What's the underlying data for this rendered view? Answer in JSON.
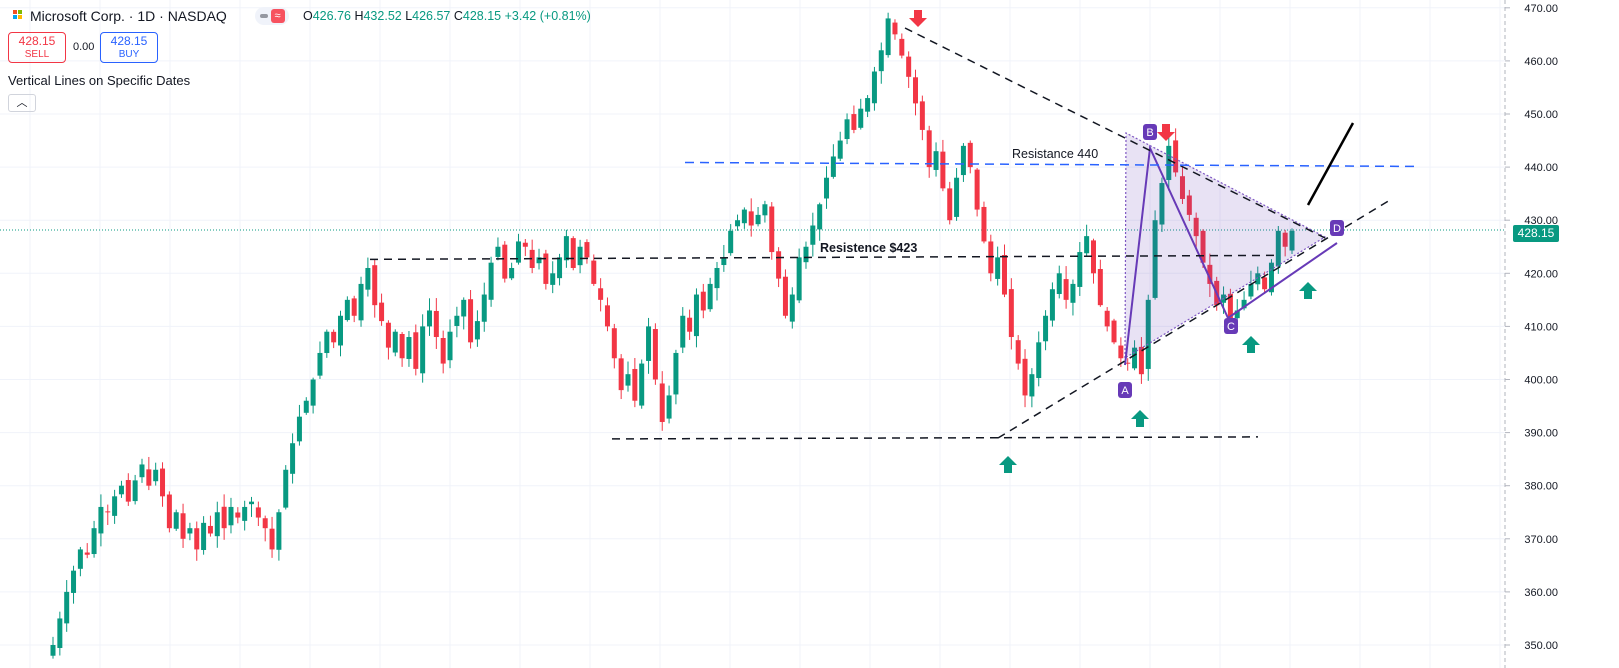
{
  "header": {
    "symbol_line": "Microsoft Corp. · 1D · NASDAQ",
    "ohlc": {
      "o_label": "O",
      "o": "426.76",
      "h_label": "H",
      "h": "432.52",
      "l_label": "L",
      "l": "426.57",
      "c_label": "C",
      "c": "428.15",
      "change": "+3.42 (+0.81%)"
    },
    "sell_price": "428.15",
    "sell_label": "SELL",
    "spread": "0.00",
    "buy_price": "428.15",
    "buy_label": "BUY",
    "indicator_title": "Vertical Lines on Specific Dates",
    "collapse_icon": "chevron-up-icon"
  },
  "colors": {
    "up": "#089981",
    "down": "#f23645",
    "blue": "#2962ff",
    "purple": "#673ab7",
    "grid": "#f0f3fa"
  },
  "last_price_tag": "428.15",
  "chart_data": {
    "type": "candlestick",
    "y_axis_labels": [
      "470.00",
      "460.00",
      "450.00",
      "440.00",
      "430.00",
      "420.00",
      "410.00",
      "400.00",
      "390.00",
      "380.00",
      "370.00",
      "360.00",
      "350.00"
    ],
    "ylim": [
      349,
      471
    ],
    "last_price": 428.15,
    "closes": [
      350,
      355,
      360,
      364,
      368,
      367,
      372,
      376,
      375,
      378,
      380,
      377,
      381,
      384,
      380,
      383,
      378,
      372,
      375,
      370,
      372,
      368,
      373,
      371,
      375,
      372,
      376,
      374,
      376,
      377,
      374,
      372,
      368,
      375,
      383,
      388,
      393,
      396,
      400,
      405,
      409,
      407,
      412,
      415,
      412,
      418,
      421,
      414,
      411,
      406,
      409,
      404,
      408,
      402,
      410,
      413,
      408,
      403,
      409,
      412,
      415,
      407,
      411,
      416,
      422,
      425,
      419,
      421,
      426,
      425,
      421,
      423,
      418,
      420,
      423,
      427,
      421,
      425,
      423,
      418,
      415,
      410,
      404,
      398,
      401,
      396,
      403,
      410,
      400,
      392,
      397,
      405,
      412,
      409,
      416,
      413,
      418,
      421,
      423,
      428,
      430,
      432,
      429,
      431,
      433,
      424,
      419,
      412,
      416,
      423,
      425,
      429,
      433,
      438,
      442,
      445,
      449,
      447,
      451,
      453,
      458,
      462,
      468,
      465,
      461,
      457,
      452,
      447,
      440,
      443,
      436,
      430,
      438,
      444,
      440,
      432,
      426,
      420,
      423,
      416,
      408,
      403,
      397,
      401,
      407,
      412,
      417,
      420,
      415,
      418,
      424,
      427,
      420,
      414,
      410,
      407,
      404,
      403,
      406,
      401,
      415,
      430,
      437,
      444,
      439,
      434,
      431,
      427,
      422,
      418,
      414,
      416,
      411,
      413,
      415,
      418,
      420,
      417,
      422,
      428,
      425,
      428
    ],
    "annotations": {
      "resistance_440": {
        "label": "Resistance 440",
        "value": 440.5
      },
      "resistance_423": {
        "label": "Resistence $423",
        "value": 423
      },
      "support_389": 389,
      "points": [
        "A",
        "B",
        "C",
        "D"
      ]
    }
  }
}
